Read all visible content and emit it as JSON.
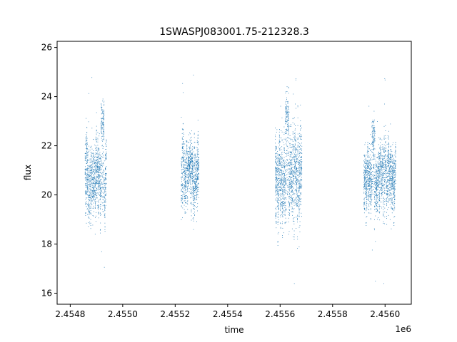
{
  "chart_data": {
    "type": "scatter",
    "title": "1SWASPJ083001.75-212328.3",
    "xlabel": "time",
    "ylabel": "flux",
    "x_offset_label": "1e6",
    "xlim": [
      2454750,
      2456100
    ],
    "ylim": [
      15.55,
      26.25
    ],
    "xticks": [
      2454800,
      2455000,
      2455200,
      2455400,
      2455600,
      2455800,
      2456000
    ],
    "xtick_labels": [
      "2.4548",
      "2.4550",
      "2.4552",
      "2.4554",
      "2.4556",
      "2.4558",
      "2.4560"
    ],
    "yticks": [
      16,
      18,
      20,
      22,
      24,
      26
    ],
    "ytick_labels": [
      "16",
      "18",
      "20",
      "22",
      "24",
      "26"
    ],
    "grid": false,
    "legend": "none",
    "marker_color": "#1f77b4",
    "series": [
      {
        "seasons": [
          {
            "x_range": [
              2454855,
              2454937
            ],
            "flux_center": 20.9,
            "flux_spread": 1.2,
            "peak": {
              "x": 2454922,
              "flux": 23.0
            }
          },
          {
            "x_range": [
              2455222,
              2455290
            ],
            "flux_center": 21.0,
            "flux_spread": 1.0
          },
          {
            "x_range": [
              2455580,
              2455682
            ],
            "flux_center": 20.8,
            "flux_spread": 1.4,
            "peak": {
              "x": 2455625,
              "flux": 23.2
            }
          },
          {
            "x_range": [
              2455918,
              2456040
            ],
            "flux_center": 20.8,
            "flux_spread": 1.0,
            "peak": {
              "x": 2455955,
              "flux": 22.3
            }
          }
        ]
      }
    ]
  }
}
